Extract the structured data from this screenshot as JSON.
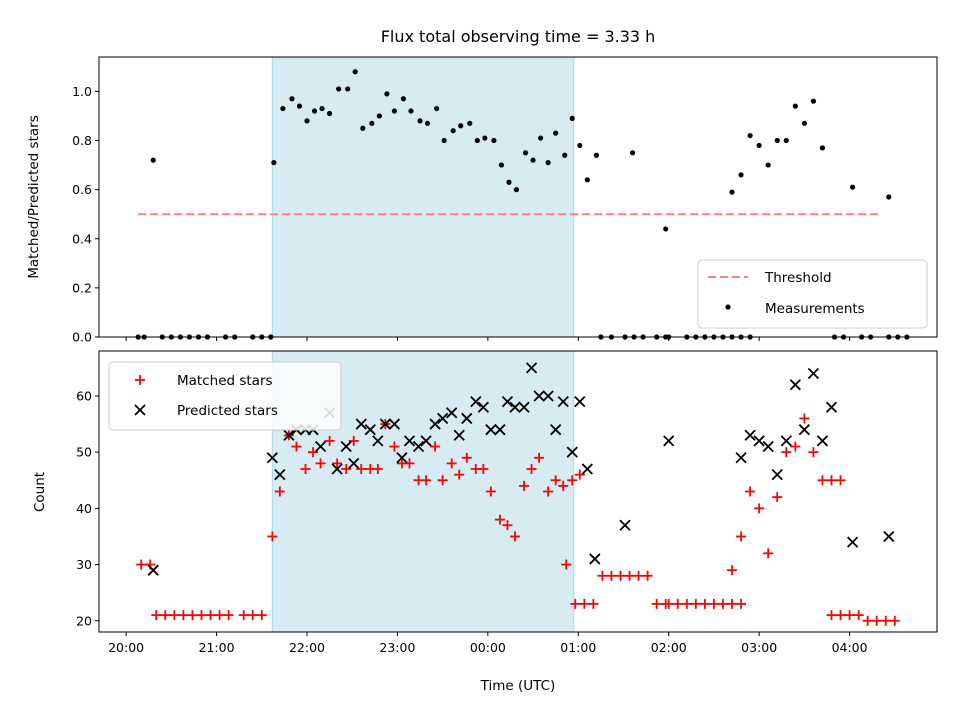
{
  "title": "Flux total observing time = 3.33 h",
  "chart_data": [
    {
      "type": "scatter",
      "panel": "top",
      "ylabel": "Matched/Predicted stars",
      "ylim": [
        0,
        1.14
      ],
      "yticks": [
        0.0,
        0.2,
        0.4,
        0.6,
        0.8,
        1.0
      ],
      "ytick_labels": [
        "0.0",
        "0.2",
        "0.4",
        "0.6",
        "0.8",
        "1.0"
      ],
      "shaded_span": [
        "21:37",
        "00:57"
      ],
      "threshold": {
        "name": "Threshold",
        "y": 0.5,
        "x": [
          "20:08",
          "04:20"
        ],
        "color": "#ff8080"
      },
      "series": [
        {
          "name": "Measurements",
          "color": "#000000",
          "points": [
            [
              "20:08",
              0
            ],
            [
              "20:12",
              0
            ],
            [
              "20:18",
              0.72
            ],
            [
              "20:24",
              0
            ],
            [
              "20:30",
              0
            ],
            [
              "20:36",
              0
            ],
            [
              "20:42",
              0
            ],
            [
              "20:48",
              0
            ],
            [
              "20:54",
              0
            ],
            [
              "21:06",
              0
            ],
            [
              "21:12",
              0
            ],
            [
              "21:24",
              0
            ],
            [
              "21:30",
              0
            ],
            [
              "21:36",
              0
            ],
            [
              "21:38",
              0.71
            ],
            [
              "21:44",
              0.93
            ],
            [
              "21:50",
              0.97
            ],
            [
              "21:55",
              0.94
            ],
            [
              "22:00",
              0.88
            ],
            [
              "22:05",
              0.92
            ],
            [
              "22:10",
              0.93
            ],
            [
              "22:15",
              0.91
            ],
            [
              "22:21",
              1.01
            ],
            [
              "22:27",
              1.01
            ],
            [
              "22:32",
              1.08
            ],
            [
              "22:37",
              0.85
            ],
            [
              "22:43",
              0.87
            ],
            [
              "22:48",
              0.9
            ],
            [
              "22:53",
              0.99
            ],
            [
              "22:58",
              0.92
            ],
            [
              "23:04",
              0.97
            ],
            [
              "23:09",
              0.92
            ],
            [
              "23:15",
              0.88
            ],
            [
              "23:20",
              0.87
            ],
            [
              "23:26",
              0.93
            ],
            [
              "23:31",
              0.8
            ],
            [
              "23:37",
              0.84
            ],
            [
              "23:42",
              0.86
            ],
            [
              "23:48",
              0.87
            ],
            [
              "23:53",
              0.8
            ],
            [
              "23:58",
              0.81
            ],
            [
              "00:04",
              0.8
            ],
            [
              "00:09",
              0.7
            ],
            [
              "00:14",
              0.63
            ],
            [
              "00:19",
              0.6
            ],
            [
              "00:25",
              0.75
            ],
            [
              "00:30",
              0.72
            ],
            [
              "00:35",
              0.81
            ],
            [
              "00:40",
              0.71
            ],
            [
              "00:45",
              0.83
            ],
            [
              "00:51",
              0.74
            ],
            [
              "00:56",
              0.89
            ],
            [
              "01:01",
              0.78
            ],
            [
              "01:06",
              0.64
            ],
            [
              "01:12",
              0.74
            ],
            [
              "01:15",
              0
            ],
            [
              "01:22",
              0
            ],
            [
              "01:31",
              0
            ],
            [
              "01:37",
              0
            ],
            [
              "01:43",
              0
            ],
            [
              "01:52",
              0
            ],
            [
              "01:58",
              0
            ],
            [
              "02:00",
              0
            ],
            [
              "02:12",
              0
            ],
            [
              "02:18",
              0
            ],
            [
              "02:24",
              0
            ],
            [
              "02:30",
              0
            ],
            [
              "02:36",
              0
            ],
            [
              "02:42",
              0
            ],
            [
              "02:48",
              0
            ],
            [
              "02:54",
              0
            ],
            [
              "01:36",
              0.75
            ],
            [
              "01:58",
              0.44
            ],
            [
              "02:42",
              0.59
            ],
            [
              "02:48",
              0.66
            ],
            [
              "02:54",
              0.82
            ],
            [
              "03:00",
              0.78
            ],
            [
              "03:06",
              0.7
            ],
            [
              "03:12",
              0.8
            ],
            [
              "03:18",
              0.8
            ],
            [
              "03:24",
              0.94
            ],
            [
              "03:30",
              0.87
            ],
            [
              "03:36",
              0.96
            ],
            [
              "03:42",
              0.77
            ],
            [
              "04:02",
              0.61
            ],
            [
              "04:26",
              0.57
            ],
            [
              "03:50",
              0
            ],
            [
              "03:56",
              0
            ],
            [
              "04:08",
              0
            ],
            [
              "04:14",
              0
            ],
            [
              "04:26",
              0
            ],
            [
              "04:32",
              0
            ],
            [
              "04:38",
              0
            ]
          ]
        }
      ],
      "legend": {
        "placement": "lower-right",
        "entries": [
          "Threshold",
          "Measurements"
        ]
      }
    },
    {
      "type": "scatter",
      "panel": "bottom",
      "xlabel": "Time (UTC)",
      "ylabel": "Count",
      "ylim": [
        18,
        68
      ],
      "yticks": [
        20,
        30,
        40,
        50,
        60
      ],
      "ytick_labels": [
        "20",
        "30",
        "40",
        "50",
        "60"
      ],
      "xlim": [
        "19:42",
        "04:58"
      ],
      "xticks": [
        "20:00",
        "21:00",
        "22:00",
        "23:00",
        "00:00",
        "01:00",
        "02:00",
        "03:00",
        "04:00"
      ],
      "shaded_span": [
        "21:37",
        "00:57"
      ],
      "series": [
        {
          "name": "Matched stars",
          "color": "#ff0000",
          "marker": "+",
          "points": [
            [
              "20:10",
              30
            ],
            [
              "20:16",
              30
            ],
            [
              "20:20",
              21
            ],
            [
              "20:26",
              21
            ],
            [
              "20:32",
              21
            ],
            [
              "20:38",
              21
            ],
            [
              "20:44",
              21
            ],
            [
              "20:50",
              21
            ],
            [
              "20:56",
              21
            ],
            [
              "21:02",
              21
            ],
            [
              "21:08",
              21
            ],
            [
              "21:18",
              21
            ],
            [
              "21:24",
              21
            ],
            [
              "21:30",
              21
            ],
            [
              "21:37",
              35
            ],
            [
              "21:42",
              43
            ],
            [
              "21:48",
              53
            ],
            [
              "21:53",
              51
            ],
            [
              "21:59",
              47
            ],
            [
              "22:04",
              50
            ],
            [
              "22:09",
              48
            ],
            [
              "22:15",
              52
            ],
            [
              "22:20",
              48
            ],
            [
              "22:26",
              47
            ],
            [
              "22:31",
              52
            ],
            [
              "22:36",
              47
            ],
            [
              "22:42",
              47
            ],
            [
              "22:47",
              47
            ],
            [
              "22:52",
              55
            ],
            [
              "22:58",
              51
            ],
            [
              "23:03",
              48
            ],
            [
              "23:08",
              48
            ],
            [
              "23:14",
              45
            ],
            [
              "23:19",
              45
            ],
            [
              "23:25",
              51
            ],
            [
              "23:30",
              45
            ],
            [
              "23:36",
              48
            ],
            [
              "23:41",
              46
            ],
            [
              "23:46",
              49
            ],
            [
              "23:52",
              47
            ],
            [
              "23:57",
              47
            ],
            [
              "00:02",
              43
            ],
            [
              "00:08",
              38
            ],
            [
              "00:13",
              37
            ],
            [
              "00:18",
              35
            ],
            [
              "00:24",
              44
            ],
            [
              "00:29",
              47
            ],
            [
              "00:34",
              49
            ],
            [
              "00:40",
              43
            ],
            [
              "00:45",
              45
            ],
            [
              "00:50",
              44
            ],
            [
              "00:56",
              45
            ],
            [
              "01:01",
              46
            ],
            [
              "00:52",
              30
            ],
            [
              "00:58",
              23
            ],
            [
              "01:04",
              23
            ],
            [
              "01:10",
              23
            ],
            [
              "01:16",
              28
            ],
            [
              "01:22",
              28
            ],
            [
              "01:28",
              28
            ],
            [
              "01:34",
              28
            ],
            [
              "01:40",
              28
            ],
            [
              "01:46",
              28
            ],
            [
              "01:52",
              23
            ],
            [
              "01:58",
              23
            ],
            [
              "02:00",
              23
            ],
            [
              "02:06",
              23
            ],
            [
              "02:12",
              23
            ],
            [
              "02:18",
              23
            ],
            [
              "02:24",
              23
            ],
            [
              "02:30",
              23
            ],
            [
              "02:36",
              23
            ],
            [
              "02:42",
              23
            ],
            [
              "02:48",
              23
            ],
            [
              "02:42",
              29
            ],
            [
              "02:48",
              35
            ],
            [
              "02:54",
              43
            ],
            [
              "03:00",
              40
            ],
            [
              "03:06",
              32
            ],
            [
              "03:12",
              42
            ],
            [
              "03:18",
              50
            ],
            [
              "03:24",
              51
            ],
            [
              "03:30",
              56
            ],
            [
              "03:36",
              50
            ],
            [
              "03:42",
              45
            ],
            [
              "03:48",
              45
            ],
            [
              "03:54",
              45
            ],
            [
              "03:48",
              21
            ],
            [
              "03:54",
              21
            ],
            [
              "04:00",
              21
            ],
            [
              "04:06",
              21
            ],
            [
              "04:12",
              20
            ],
            [
              "04:18",
              20
            ],
            [
              "04:24",
              20
            ],
            [
              "04:30",
              20
            ]
          ]
        },
        {
          "name": "Predicted stars",
          "color": "#000000",
          "marker": "x",
          "points": [
            [
              "20:18",
              29
            ],
            [
              "21:37",
              49
            ],
            [
              "21:42",
              46
            ],
            [
              "21:48",
              53
            ],
            [
              "21:53",
              54
            ],
            [
              "21:59",
              54
            ],
            [
              "22:04",
              54
            ],
            [
              "22:09",
              51
            ],
            [
              "22:15",
              57
            ],
            [
              "22:20",
              47
            ],
            [
              "22:26",
              51
            ],
            [
              "22:31",
              48
            ],
            [
              "22:36",
              55
            ],
            [
              "22:42",
              54
            ],
            [
              "22:47",
              52
            ],
            [
              "22:52",
              55
            ],
            [
              "22:58",
              55
            ],
            [
              "23:03",
              49
            ],
            [
              "23:08",
              52
            ],
            [
              "23:14",
              51
            ],
            [
              "23:19",
              52
            ],
            [
              "23:25",
              55
            ],
            [
              "23:30",
              56
            ],
            [
              "23:36",
              57
            ],
            [
              "23:41",
              53
            ],
            [
              "23:46",
              56
            ],
            [
              "23:52",
              59
            ],
            [
              "23:57",
              58
            ],
            [
              "00:02",
              54
            ],
            [
              "00:08",
              54
            ],
            [
              "00:13",
              59
            ],
            [
              "00:18",
              58
            ],
            [
              "00:24",
              58
            ],
            [
              "00:29",
              65
            ],
            [
              "00:34",
              60
            ],
            [
              "00:40",
              60
            ],
            [
              "00:45",
              54
            ],
            [
              "00:50",
              59
            ],
            [
              "00:56",
              50
            ],
            [
              "01:01",
              59
            ],
            [
              "01:06",
              47
            ],
            [
              "01:11",
              31
            ],
            [
              "01:31",
              37
            ],
            [
              "02:00",
              52
            ],
            [
              "02:48",
              49
            ],
            [
              "02:54",
              53
            ],
            [
              "03:00",
              52
            ],
            [
              "03:06",
              51
            ],
            [
              "03:12",
              46
            ],
            [
              "03:18",
              52
            ],
            [
              "03:24",
              62
            ],
            [
              "03:30",
              54
            ],
            [
              "03:36",
              64
            ],
            [
              "03:42",
              52
            ],
            [
              "03:48",
              58
            ],
            [
              "04:02",
              34
            ],
            [
              "04:26",
              35
            ]
          ]
        }
      ],
      "legend": {
        "placement": "upper-left",
        "entries": [
          "Matched stars",
          "Predicted stars"
        ]
      }
    }
  ]
}
